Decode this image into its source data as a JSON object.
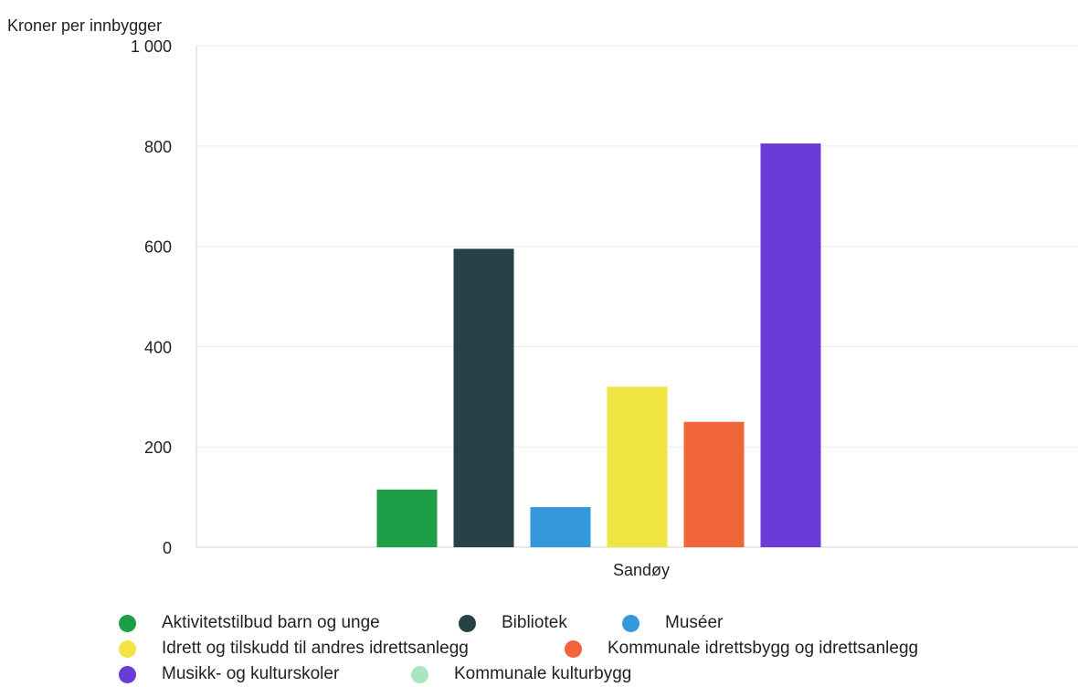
{
  "chart_data": {
    "type": "bar",
    "ylabel": "Kroner per innbygger",
    "ylim": [
      0,
      1000
    ],
    "yticks": [
      0,
      200,
      400,
      600,
      800,
      1000
    ],
    "ytick_labels": [
      "0",
      "200",
      "400",
      "600",
      "800",
      "1 000"
    ],
    "categories": [
      "Sandøy"
    ],
    "grid": true,
    "legend_position": "bottom",
    "series": [
      {
        "name": "Aktivitetstilbud barn og unge",
        "color": "#1e9e47",
        "values": [
          115
        ]
      },
      {
        "name": "Bibliotek",
        "color": "#264247",
        "values": [
          595
        ]
      },
      {
        "name": "Muséer",
        "color": "#3498db",
        "values": [
          80
        ]
      },
      {
        "name": "Idrett og tilskudd til andres idrettsanlegg",
        "color": "#f0e442",
        "values": [
          320
        ]
      },
      {
        "name": "Kommunale idrettsbygg og idrettsanlegg",
        "color": "#f0663a",
        "values": [
          250
        ]
      },
      {
        "name": "Musikk- og kulturskoler",
        "color": "#6a3bd6",
        "values": [
          805
        ]
      },
      {
        "name": "Kommunale kulturbygg",
        "color": "#a8e6c0",
        "values": [
          0
        ]
      }
    ]
  }
}
